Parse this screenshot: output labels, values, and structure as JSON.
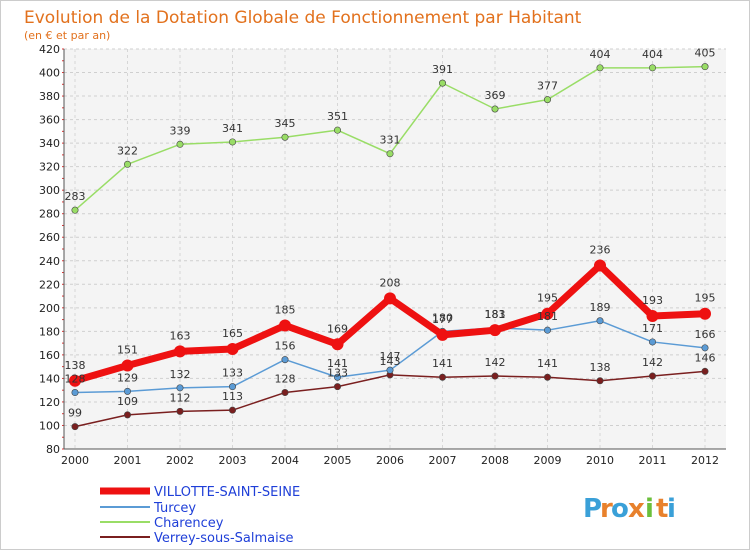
{
  "chart_data": {
    "type": "line",
    "title": "Evolution de la Dotation Globale de Fonctionnement par Habitant",
    "subtitle": "(en € et par an)",
    "categories": [
      "2000",
      "2001",
      "2002",
      "2003",
      "2004",
      "2005",
      "2006",
      "2007",
      "2008",
      "2009",
      "2010",
      "2011",
      "2012"
    ],
    "ylim": [
      80,
      420
    ],
    "yticks": [
      80,
      100,
      120,
      140,
      160,
      180,
      200,
      220,
      240,
      260,
      280,
      300,
      320,
      340,
      360,
      380,
      400,
      420
    ],
    "grid": true,
    "legend_position": "bottom-left",
    "series": [
      {
        "name": "Verrey-sous-Salmaise",
        "color": "#7a1f1f",
        "values": [
          99,
          109,
          112,
          113,
          128,
          133,
          143,
          141,
          142,
          141,
          138,
          142,
          146
        ]
      },
      {
        "name": "Turcey",
        "color": "#5b9bd5",
        "values": [
          128,
          129,
          132,
          133,
          156,
          141,
          147,
          180,
          183,
          181,
          189,
          171,
          166
        ]
      },
      {
        "name": "Charencey",
        "color": "#99dd66",
        "values": [
          283,
          322,
          339,
          341,
          345,
          351,
          331,
          391,
          369,
          377,
          404,
          404,
          405
        ]
      },
      {
        "name": "VILLOTTE-SAINT-SEINE",
        "color": "#ee1111",
        "values": [
          138,
          151,
          163,
          165,
          185,
          169,
          208,
          177,
          181,
          195,
          236,
          193,
          195
        ]
      }
    ],
    "labels": [
      {
        "series": "Verrey-sous-Salmaise",
        "values": [
          "99",
          "109",
          "112",
          "113",
          "128",
          "133",
          "143",
          "141",
          "142",
          "141",
          "138",
          "142",
          "146"
        ]
      },
      {
        "series": "Turcey",
        "values": [
          "128",
          "129",
          "132",
          "133",
          "156",
          "141",
          "147",
          "180",
          "183",
          "181",
          "189",
          "171",
          "166"
        ]
      },
      {
        "series": "Charencey",
        "values": [
          "283",
          "322",
          "339",
          "341",
          "345",
          "351",
          "331",
          "391",
          "369",
          "377",
          "404",
          "404",
          "405"
        ]
      },
      {
        "series": "VILLOTTE-SAINT-SEINE",
        "values": [
          "138",
          "151",
          "163",
          "165",
          "185",
          "169",
          "208",
          "177",
          "181",
          "195",
          "236",
          "193",
          "195"
        ]
      }
    ]
  },
  "legend": {
    "items": [
      {
        "label": "VILLOTTE-SAINT-SEINE",
        "color": "#ee1111"
      },
      {
        "label": "Turcey",
        "color": "#5b9bd5"
      },
      {
        "label": "Charencey",
        "color": "#99dd66"
      },
      {
        "label": "Verrey-sous-Salmaise",
        "color": "#7a1f1f"
      }
    ]
  },
  "brand": {
    "letters": [
      "P",
      "r",
      "o",
      "x",
      "i",
      "t",
      "i"
    ],
    "colors": [
      "#3aa0d8",
      "#e8812c",
      "#3aa0d8",
      "#e8812c",
      "#6bbf3b",
      "#e8812c",
      "#3aa0d8"
    ]
  }
}
